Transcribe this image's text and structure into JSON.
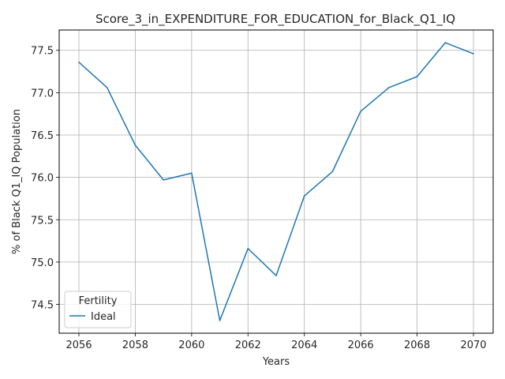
{
  "chart_data": {
    "type": "line",
    "title": "Score_3_in_EXPENDITURE_FOR_EDUCATION_for_Black_Q1_IQ",
    "xlabel": "Years",
    "ylabel": "% of Black Q1_IQ Population",
    "x": [
      2056,
      2057,
      2058,
      2059,
      2060,
      2061,
      2062,
      2063,
      2064,
      2065,
      2066,
      2067,
      2068,
      2069,
      2070
    ],
    "series": [
      {
        "name": "Ideal",
        "color": "#1f77b4",
        "values": [
          77.36,
          77.06,
          76.38,
          75.97,
          76.05,
          74.31,
          75.16,
          74.84,
          75.78,
          76.07,
          76.78,
          77.06,
          77.19,
          77.59,
          77.46
        ]
      }
    ],
    "xlim": [
      2055.3,
      2070.7
    ],
    "ylim": [
      74.16,
      77.74
    ],
    "xticks": [
      2056,
      2058,
      2060,
      2062,
      2064,
      2066,
      2068,
      2070
    ],
    "yticks": [
      74.5,
      75.0,
      75.5,
      76.0,
      76.5,
      77.0,
      77.5
    ],
    "ytick_labels": [
      "74.5",
      "75.0",
      "75.5",
      "76.0",
      "76.5",
      "77.0",
      "77.5"
    ],
    "grid": true,
    "legend": {
      "title": "Fertility",
      "placement": "lower-left"
    }
  }
}
